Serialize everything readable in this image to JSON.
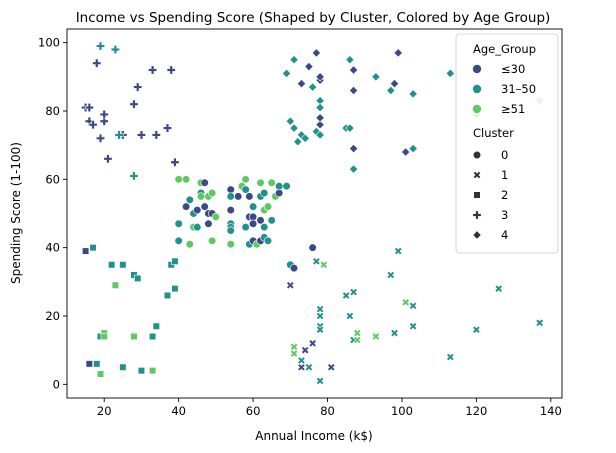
{
  "chart_data": {
    "type": "scatter",
    "title": "Income vs Spending Score (Shaped by Cluster, Colored by Age Group)",
    "xlabel": "Annual Income (k$)",
    "ylabel": "Spending Score (1-100)",
    "xlim": [
      10,
      143
    ],
    "ylim": [
      -4,
      104
    ],
    "xticks": [
      20,
      40,
      60,
      80,
      100,
      120,
      140
    ],
    "yticks": [
      0,
      20,
      40,
      60,
      80,
      100
    ],
    "grid": false,
    "legend_position": "top-right",
    "age_group_title": "Age_Group",
    "age_groups": [
      {
        "label": "≤30",
        "color": "#3b4a86"
      },
      {
        "label": "31–50",
        "color": "#21918c"
      },
      {
        "label": "≥51",
        "color": "#5ec962"
      }
    ],
    "cluster_title": "Cluster",
    "clusters": [
      {
        "label": "0",
        "marker": "circle"
      },
      {
        "label": "1",
        "marker": "x"
      },
      {
        "label": "2",
        "marker": "square"
      },
      {
        "label": "3",
        "marker": "plus"
      },
      {
        "label": "4",
        "marker": "diamond"
      }
    ],
    "points": [
      [
        15,
        81,
        3,
        0
      ],
      [
        16,
        77,
        3,
        0
      ],
      [
        17,
        76,
        3,
        0
      ],
      [
        18,
        94,
        3,
        0
      ],
      [
        19,
        72,
        3,
        0
      ],
      [
        20,
        77,
        3,
        0
      ],
      [
        20,
        79,
        3,
        0
      ],
      [
        21,
        66,
        3,
        0
      ],
      [
        28,
        82,
        3,
        0
      ],
      [
        29,
        87,
        3,
        0
      ],
      [
        30,
        73,
        3,
        0
      ],
      [
        33,
        92,
        3,
        0
      ],
      [
        34,
        73,
        3,
        0
      ],
      [
        37,
        75,
        3,
        0
      ],
      [
        38,
        92,
        3,
        0
      ],
      [
        39,
        65,
        3,
        0
      ],
      [
        25,
        73,
        3,
        0
      ],
      [
        28,
        61,
        3,
        1
      ],
      [
        19,
        99,
        3,
        1
      ],
      [
        23,
        98,
        3,
        1
      ],
      [
        24,
        73,
        3,
        1
      ],
      [
        16,
        81,
        3,
        0
      ],
      [
        15,
        39,
        2,
        0
      ],
      [
        17,
        40,
        2,
        1
      ],
      [
        22,
        35,
        2,
        1
      ],
      [
        25,
        35,
        2,
        1
      ],
      [
        28,
        32,
        2,
        1
      ],
      [
        29,
        31,
        2,
        1
      ],
      [
        37,
        26,
        2,
        1
      ],
      [
        38,
        35,
        2,
        1
      ],
      [
        39,
        36,
        2,
        1
      ],
      [
        39,
        28,
        2,
        1
      ],
      [
        34,
        17,
        2,
        1
      ],
      [
        33,
        14,
        2,
        1
      ],
      [
        30,
        4,
        2,
        1
      ],
      [
        25,
        5,
        2,
        1
      ],
      [
        16,
        6,
        2,
        0
      ],
      [
        18,
        6,
        2,
        1
      ],
      [
        19,
        14,
        2,
        1
      ],
      [
        20,
        15,
        2,
        2
      ],
      [
        19,
        3,
        2,
        2
      ],
      [
        28,
        14,
        2,
        2
      ],
      [
        23,
        29,
        2,
        2
      ],
      [
        33,
        4,
        2,
        2
      ],
      [
        20,
        14,
        2,
        2
      ],
      [
        40,
        60,
        0,
        2
      ],
      [
        40,
        47,
        0,
        1
      ],
      [
        40,
        42,
        0,
        1
      ],
      [
        42,
        52,
        0,
        0
      ],
      [
        42,
        60,
        0,
        2
      ],
      [
        43,
        54,
        0,
        1
      ],
      [
        43,
        41,
        0,
        2
      ],
      [
        44,
        46,
        0,
        2
      ],
      [
        44,
        50,
        0,
        1
      ],
      [
        45,
        46,
        0,
        1
      ],
      [
        45,
        51,
        0,
        0
      ],
      [
        46,
        56,
        0,
        1
      ],
      [
        46,
        59,
        0,
        2
      ],
      [
        46,
        55,
        0,
        2
      ],
      [
        47,
        52,
        0,
        0
      ],
      [
        47,
        59,
        0,
        0
      ],
      [
        48,
        47,
        0,
        0
      ],
      [
        48,
        50,
        0,
        0
      ],
      [
        48,
        55,
        0,
        2
      ],
      [
        49,
        42,
        0,
        2
      ],
      [
        49,
        50,
        0,
        0
      ],
      [
        49,
        56,
        0,
        2
      ],
      [
        50,
        49,
        0,
        2
      ],
      [
        54,
        57,
        0,
        0
      ],
      [
        54,
        55,
        0,
        1
      ],
      [
        54,
        51,
        0,
        0
      ],
      [
        54,
        47,
        0,
        1
      ],
      [
        54,
        46,
        0,
        1
      ],
      [
        54,
        45,
        0,
        1
      ],
      [
        54,
        41,
        0,
        2
      ],
      [
        56,
        55,
        0,
        0
      ],
      [
        57,
        58,
        0,
        2
      ],
      [
        58,
        60,
        0,
        2
      ],
      [
        58,
        57,
        0,
        1
      ],
      [
        58,
        46,
        0,
        1
      ],
      [
        59,
        55,
        0,
        0
      ],
      [
        59,
        49,
        0,
        0
      ],
      [
        59,
        41,
        0,
        1
      ],
      [
        60,
        52,
        0,
        1
      ],
      [
        60,
        49,
        0,
        0
      ],
      [
        60,
        47,
        0,
        0
      ],
      [
        60,
        42,
        0,
        0
      ],
      [
        61,
        41,
        0,
        2
      ],
      [
        62,
        59,
        0,
        2
      ],
      [
        62,
        55,
        0,
        1
      ],
      [
        62,
        48,
        0,
        0
      ],
      [
        62,
        42,
        0,
        0
      ],
      [
        63,
        56,
        0,
        1
      ],
      [
        63,
        51,
        0,
        2
      ],
      [
        63,
        46,
        0,
        1
      ],
      [
        63,
        43,
        0,
        1
      ],
      [
        64,
        52,
        0,
        2
      ],
      [
        64,
        42,
        0,
        1
      ],
      [
        65,
        59,
        0,
        2
      ],
      [
        65,
        48,
        0,
        1
      ],
      [
        66,
        55,
        0,
        2
      ],
      [
        67,
        56,
        0,
        0
      ],
      [
        67,
        58,
        0,
        1
      ],
      [
        69,
        58,
        0,
        1
      ],
      [
        70,
        35,
        0,
        1
      ],
      [
        71,
        34,
        0,
        0
      ],
      [
        76,
        40,
        0,
        0
      ],
      [
        69,
        91,
        4,
        1
      ],
      [
        70,
        77,
        4,
        1
      ],
      [
        71,
        95,
        4,
        1
      ],
      [
        71,
        75,
        4,
        1
      ],
      [
        72,
        71,
        4,
        1
      ],
      [
        73,
        88,
        4,
        0
      ],
      [
        73,
        73,
        4,
        1
      ],
      [
        74,
        72,
        4,
        1
      ],
      [
        75,
        93,
        4,
        0
      ],
      [
        76,
        87,
        4,
        1
      ],
      [
        77,
        97,
        4,
        0
      ],
      [
        77,
        74,
        4,
        1
      ],
      [
        78,
        76,
        4,
        0
      ],
      [
        78,
        78,
        4,
        0
      ],
      [
        78,
        83,
        4,
        1
      ],
      [
        78,
        89,
        4,
        0
      ],
      [
        78,
        90,
        4,
        0
      ],
      [
        78,
        73,
        4,
        1
      ],
      [
        85,
        75,
        4,
        1
      ],
      [
        86,
        95,
        4,
        1
      ],
      [
        86,
        75,
        4,
        1
      ],
      [
        87,
        92,
        4,
        0
      ],
      [
        87,
        86,
        4,
        0
      ],
      [
        87,
        69,
        4,
        0
      ],
      [
        87,
        63,
        4,
        1
      ],
      [
        93,
        90,
        4,
        1
      ],
      [
        97,
        86,
        4,
        1
      ],
      [
        98,
        88,
        4,
        0
      ],
      [
        99,
        97,
        4,
        0
      ],
      [
        101,
        68,
        4,
        0
      ],
      [
        103,
        85,
        4,
        1
      ],
      [
        103,
        69,
        4,
        1
      ],
      [
        113,
        91,
        4,
        1
      ],
      [
        120,
        79,
        4,
        1
      ],
      [
        126,
        74,
        4,
        1
      ],
      [
        137,
        83,
        4,
        2
      ],
      [
        78,
        81,
        4,
        1
      ],
      [
        70,
        29,
        1,
        0
      ],
      [
        71,
        11,
        1,
        2
      ],
      [
        71,
        9,
        1,
        2
      ],
      [
        73,
        5,
        1,
        0
      ],
      [
        73,
        7,
        1,
        1
      ],
      [
        74,
        10,
        1,
        0
      ],
      [
        75,
        5,
        1,
        1
      ],
      [
        76,
        12,
        1,
        0
      ],
      [
        77,
        36,
        1,
        1
      ],
      [
        78,
        22,
        1,
        1
      ],
      [
        78,
        20,
        1,
        1
      ],
      [
        78,
        17,
        1,
        1
      ],
      [
        78,
        16,
        1,
        1
      ],
      [
        78,
        1,
        1,
        1
      ],
      [
        79,
        35,
        1,
        2
      ],
      [
        81,
        5,
        1,
        0
      ],
      [
        85,
        26,
        1,
        1
      ],
      [
        86,
        20,
        1,
        1
      ],
      [
        87,
        27,
        1,
        1
      ],
      [
        87,
        13,
        1,
        1
      ],
      [
        88,
        15,
        1,
        2
      ],
      [
        88,
        13,
        1,
        2
      ],
      [
        93,
        14,
        1,
        2
      ],
      [
        97,
        32,
        1,
        1
      ],
      [
        98,
        15,
        1,
        1
      ],
      [
        99,
        39,
        1,
        1
      ],
      [
        101,
        24,
        1,
        2
      ],
      [
        103,
        23,
        1,
        1
      ],
      [
        103,
        17,
        1,
        1
      ],
      [
        113,
        8,
        1,
        1
      ],
      [
        120,
        16,
        1,
        1
      ],
      [
        126,
        28,
        1,
        1
      ],
      [
        137,
        18,
        1,
        1
      ]
    ]
  }
}
